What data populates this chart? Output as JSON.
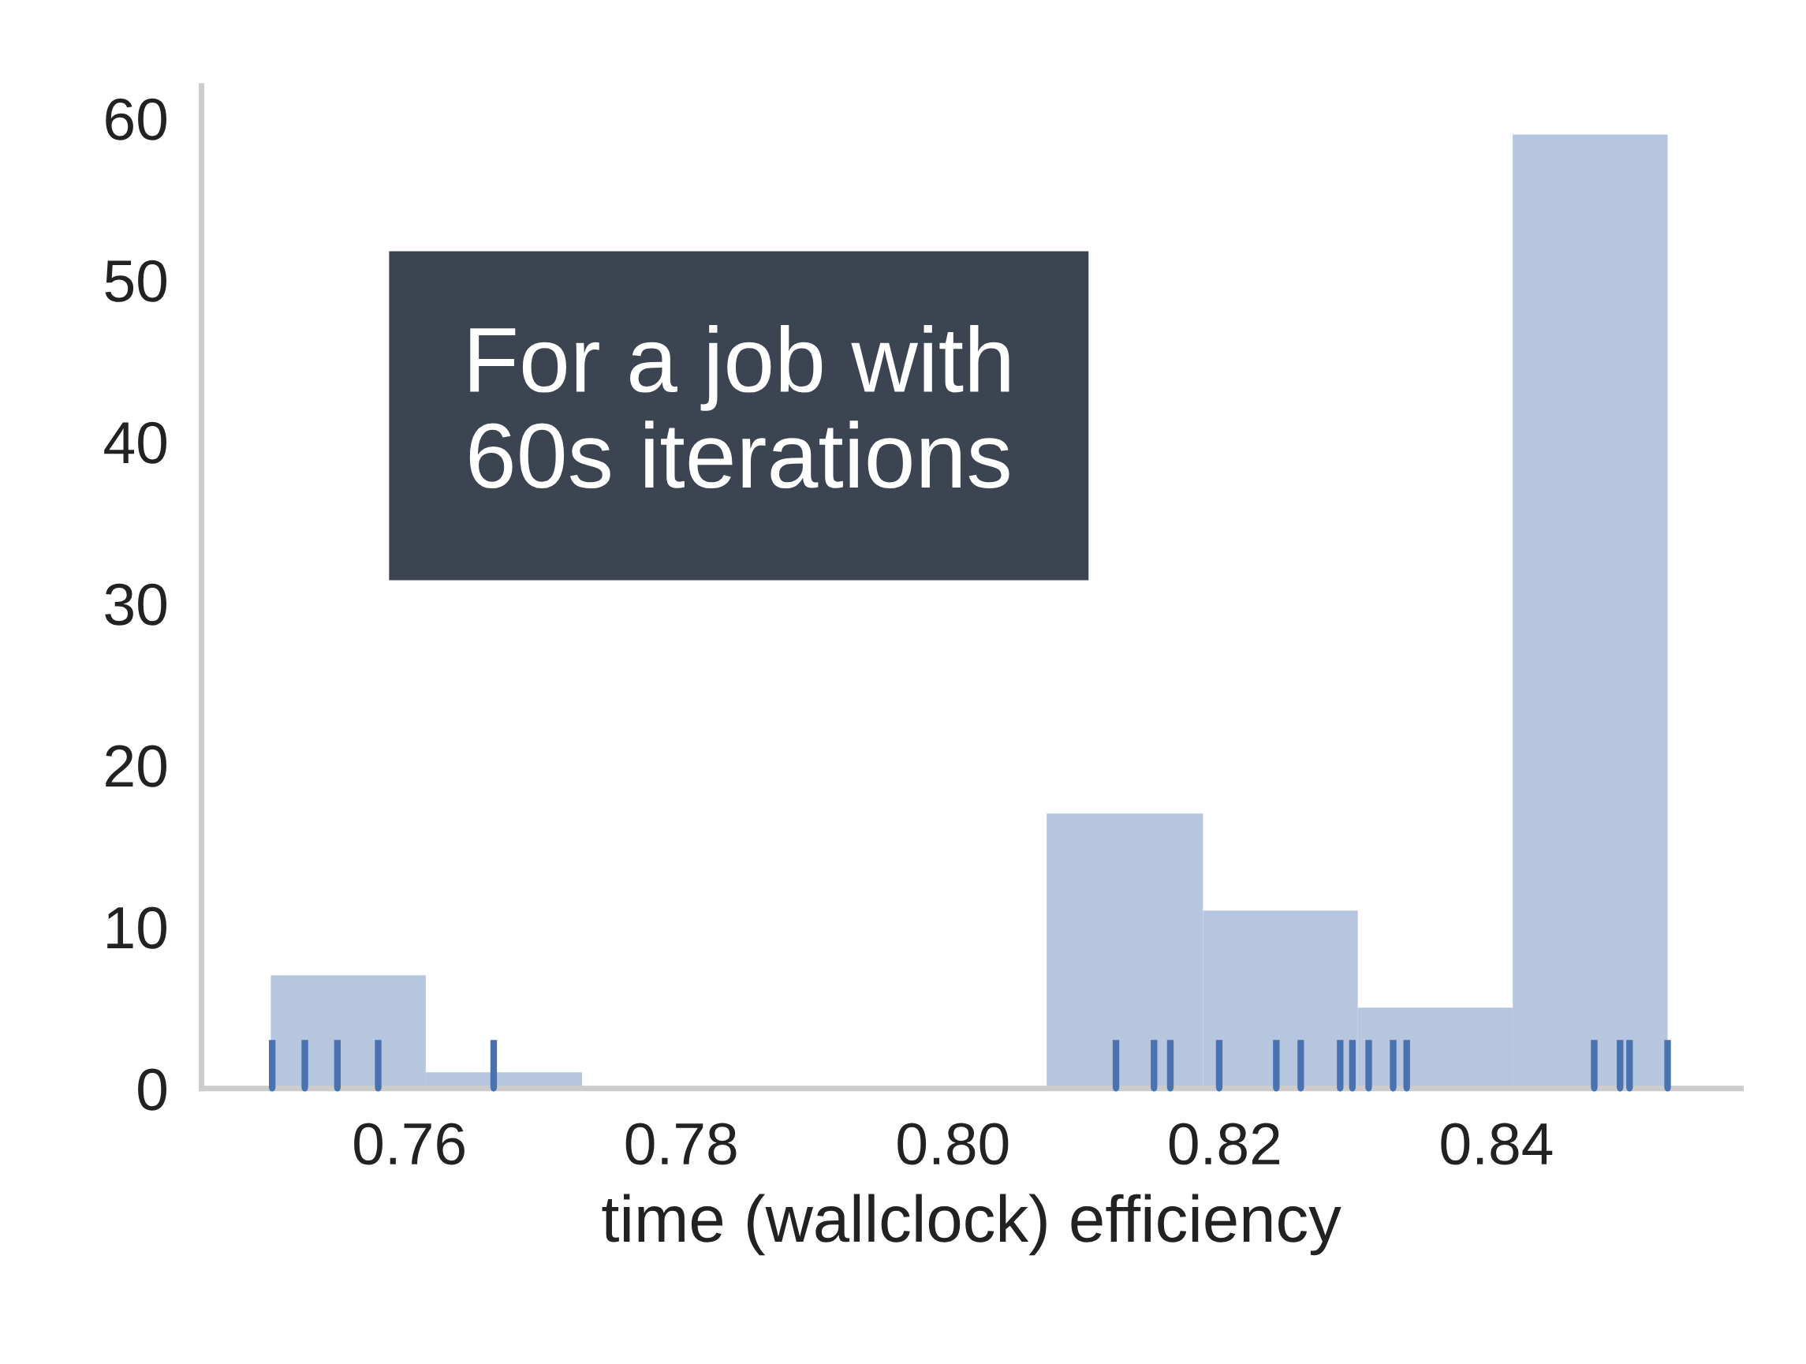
{
  "chart_data": {
    "type": "histogram",
    "xlabel": "time (wallclock) efficiency",
    "bins": [
      0.7498,
      0.7612,
      0.7727,
      0.8069,
      0.8184,
      0.8298,
      0.8412,
      0.8526
    ],
    "values": [
      7,
      1,
      0,
      17,
      11,
      5,
      59
    ],
    "color": "#b6c6df",
    "series": [
      {
        "type": "scatter",
        "color": "#4a72b0",
        "x": [
          0.7499,
          0.7523,
          0.7547,
          0.7577,
          0.7662,
          0.812,
          0.8148,
          0.816,
          0.8196,
          0.8238,
          0.8256,
          0.8285,
          0.8294,
          0.8306,
          0.8324,
          0.8334,
          0.8472,
          0.8491,
          0.8498,
          0.8526
        ],
        "values": [
          0,
          0,
          0,
          0,
          0,
          0,
          0,
          0,
          0,
          0,
          0,
          0,
          0,
          0,
          0,
          0,
          0,
          0,
          0,
          0
        ],
        "errors": [
          [
            0,
            3
          ],
          [
            0,
            3
          ],
          [
            0,
            3
          ],
          [
            0,
            3
          ],
          [
            0,
            3
          ],
          [
            0,
            3
          ],
          [
            0,
            3
          ],
          [
            0,
            3
          ],
          [
            0,
            3
          ],
          [
            0,
            3
          ],
          [
            0,
            3
          ],
          [
            0,
            3
          ],
          [
            0,
            3
          ],
          [
            0,
            3
          ],
          [
            0,
            3
          ],
          [
            0,
            3
          ],
          [
            0,
            3
          ],
          [
            0,
            3
          ],
          [
            0,
            3
          ],
          [
            0,
            3
          ]
        ]
      }
    ],
    "xlim": [
      0.7447,
      0.858
    ],
    "ylim": [
      0,
      62
    ],
    "xticks": [
      {
        "value": 0.76,
        "label": "0.76"
      },
      {
        "value": 0.78,
        "label": "0.78"
      },
      {
        "value": 0.8,
        "label": "0.80"
      },
      {
        "value": 0.82,
        "label": "0.82"
      },
      {
        "value": 0.84,
        "label": "0.84"
      }
    ],
    "yticks": [
      0,
      10,
      20,
      30,
      40,
      50,
      60
    ],
    "annotations": [
      "For a job with\n60s iterations"
    ],
    "grid": false
  }
}
